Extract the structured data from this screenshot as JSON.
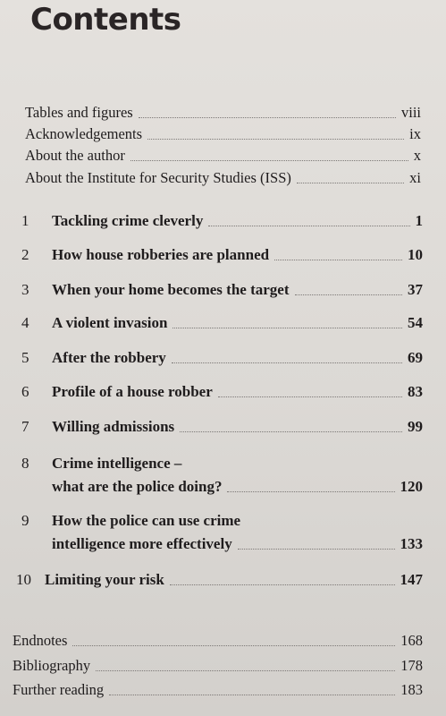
{
  "title": "Contents",
  "front_matter": [
    {
      "label": "Tables and figures",
      "page": "viii"
    },
    {
      "label": "Acknowledgements",
      "page": "ix"
    },
    {
      "label": "About the author",
      "page": "x"
    },
    {
      "label": "About the Institute for Security Studies (ISS)",
      "page": "xi"
    }
  ],
  "chapters": [
    {
      "num": "1",
      "title": "Tackling crime cleverly",
      "page": "1"
    },
    {
      "num": "2",
      "title": "How house robberies are planned",
      "page": "10"
    },
    {
      "num": "3",
      "title": "When your home becomes the target",
      "page": "37"
    },
    {
      "num": "4",
      "title": "A violent invasion",
      "page": "54"
    },
    {
      "num": "5",
      "title": "After the robbery",
      "page": "69"
    },
    {
      "num": "6",
      "title": "Profile of a house robber",
      "page": "83"
    },
    {
      "num": "7",
      "title": "Willing admissions",
      "page": "99"
    },
    {
      "num": "8",
      "title_line1": "Crime intelligence –",
      "title_line2": "what are the police doing?",
      "page": "120"
    },
    {
      "num": "9",
      "title_line1": "How the police can use crime",
      "title_line2": "intelligence more effectively",
      "page": "133"
    },
    {
      "num": "10",
      "title": "Limiting your risk",
      "page": "147"
    }
  ],
  "back_matter": [
    {
      "label": "Endnotes",
      "page": "168"
    },
    {
      "label": "Bibliography",
      "page": "178"
    },
    {
      "label": "Further reading",
      "page": "183"
    }
  ]
}
